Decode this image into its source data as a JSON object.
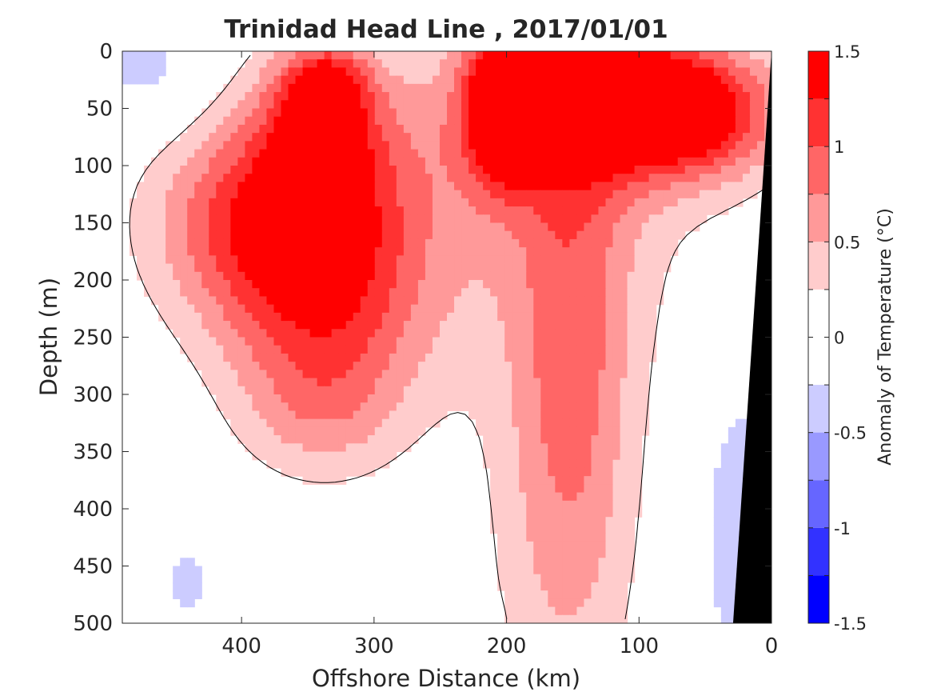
{
  "chart_data": {
    "type": "heatmap",
    "title": "Trinidad Head Line , 2017/01/01",
    "xlabel": "Offshore Distance (km)",
    "ylabel": "Depth (m)",
    "xlim": [
      490,
      0
    ],
    "ylim": [
      0,
      500
    ],
    "x_reversed": true,
    "y_reversed": true,
    "x_ticks": [
      "400",
      "300",
      "200",
      "100",
      "0"
    ],
    "y_ticks": [
      "0",
      "50",
      "100",
      "150",
      "200",
      "250",
      "300",
      "350",
      "400",
      "450",
      "500"
    ],
    "colorbar": {
      "label": "Anomaly of Temperature (°C)",
      "range": [
        -1.5,
        1.5
      ],
      "tick_labels": [
        "1.5",
        "1",
        "0.5",
        "0",
        "-0.5",
        "-1",
        "-1.5"
      ],
      "levels": [
        {
          "min": 1.25,
          "max": 1.5,
          "color": "#ff0000"
        },
        {
          "min": 1.0,
          "max": 1.25,
          "color": "#ff3232"
        },
        {
          "min": 0.75,
          "max": 1.0,
          "color": "#ff6666"
        },
        {
          "min": 0.5,
          "max": 0.75,
          "color": "#ff9999"
        },
        {
          "min": 0.25,
          "max": 0.5,
          "color": "#ffcccc"
        },
        {
          "min": -0.25,
          "max": 0.25,
          "color": "#ffffff"
        },
        {
          "min": -0.5,
          "max": -0.25,
          "color": "#ccccff"
        },
        {
          "min": -0.75,
          "max": -0.5,
          "color": "#9999ff"
        },
        {
          "min": -1.0,
          "max": -0.75,
          "color": "#6666ff"
        },
        {
          "min": -1.25,
          "max": -1.0,
          "color": "#3232ff"
        },
        {
          "min": -1.5,
          "max": -1.25,
          "color": "#0000ff"
        }
      ]
    },
    "contour_line": {
      "value": 0,
      "color": "#000000"
    },
    "bathymetry_color": "#000000",
    "anomaly_features": [
      {
        "x_km": 340,
        "depth_m": 140,
        "anomaly": 1.1,
        "sx_km": 60,
        "sz_m": 80
      },
      {
        "x_km": 400,
        "depth_m": 150,
        "anomaly": 0.6,
        "sx_km": 55,
        "sz_m": 60
      },
      {
        "x_km": 340,
        "depth_m": 60,
        "anomaly": 0.9,
        "sx_km": 28,
        "sz_m": 45
      },
      {
        "x_km": 335,
        "depth_m": 30,
        "anomaly": 0.7,
        "sx_km": 20,
        "sz_m": 20
      },
      {
        "x_km": 335,
        "depth_m": 250,
        "anomaly": 0.65,
        "sx_km": 55,
        "sz_m": 70
      },
      {
        "x_km": 340,
        "depth_m": 320,
        "anomaly": 0.3,
        "sx_km": 40,
        "sz_m": 40
      },
      {
        "x_km": 205,
        "depth_m": 45,
        "anomaly": 1.35,
        "sx_km": 18,
        "sz_m": 45
      },
      {
        "x_km": 160,
        "depth_m": 55,
        "anomaly": 0.9,
        "sx_km": 50,
        "sz_m": 50
      },
      {
        "x_km": 55,
        "depth_m": 55,
        "anomaly": 1.25,
        "sx_km": 45,
        "sz_m": 40
      },
      {
        "x_km": 100,
        "depth_m": 40,
        "anomaly": 0.8,
        "sx_km": 40,
        "sz_m": 35
      },
      {
        "x_km": 160,
        "depth_m": 80,
        "anomaly": 0.45,
        "sx_km": 80,
        "sz_m": 130
      },
      {
        "x_km": 150,
        "depth_m": 270,
        "anomaly": 0.55,
        "sx_km": 30,
        "sz_m": 150
      },
      {
        "x_km": 160,
        "depth_m": 420,
        "anomaly": 0.35,
        "sx_km": 45,
        "sz_m": 180
      },
      {
        "x_km": 20,
        "depth_m": 420,
        "anomaly": -0.45,
        "sx_km": 25,
        "sz_m": 100
      },
      {
        "x_km": 440,
        "depth_m": 465,
        "anomaly": -0.35,
        "sx_km": 14,
        "sz_m": 25
      },
      {
        "x_km": 470,
        "depth_m": 15,
        "anomaly": -0.35,
        "sx_km": 35,
        "sz_m": 40
      },
      {
        "x_km": 250,
        "depth_m": 500,
        "anomaly": -0.3,
        "sx_km": 20,
        "sz_m": 15
      }
    ]
  }
}
